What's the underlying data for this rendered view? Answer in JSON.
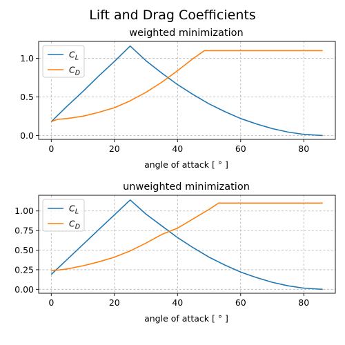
{
  "figure": {
    "suptitle": "Lift and Drag Coefficients"
  },
  "colors": {
    "cl": "#1f77b4",
    "cd": "#ff7f0e"
  },
  "chart_data": [
    {
      "type": "line",
      "title": "weighted minimization",
      "xlabel": "angle of attack [$^\\circ$]",
      "xlabel_display": "angle of attack [ ° ]",
      "ylabel": "",
      "xlim": [
        -4,
        90
      ],
      "ylim": [
        -0.05,
        1.22
      ],
      "xticks": [
        0,
        20,
        40,
        60,
        80
      ],
      "xtick_labels": [
        "0",
        "20",
        "40",
        "60",
        "80"
      ],
      "yticks": [
        0.0,
        0.5,
        1.0
      ],
      "ytick_labels": [
        "0.0",
        "0.5",
        "1.0"
      ],
      "grid": true,
      "legend": "upper left",
      "series": [
        {
          "name": "C_L",
          "x": [
            0,
            5,
            10,
            15,
            20,
            25,
            30,
            35,
            40,
            45,
            50,
            55,
            60,
            65,
            70,
            75,
            80,
            86
          ],
          "y": [
            0.18,
            0.38,
            0.57,
            0.77,
            0.96,
            1.16,
            0.97,
            0.81,
            0.66,
            0.53,
            0.41,
            0.31,
            0.22,
            0.15,
            0.09,
            0.045,
            0.015,
            0.0
          ]
        },
        {
          "name": "C_D",
          "x": [
            0,
            2,
            5,
            10,
            15,
            20,
            25,
            30,
            35,
            40,
            45,
            48.5,
            50,
            55,
            60,
            65,
            70,
            75,
            80,
            86
          ],
          "y": [
            0.18,
            0.21,
            0.22,
            0.25,
            0.3,
            0.36,
            0.45,
            0.56,
            0.69,
            0.84,
            1.0,
            1.1,
            1.1,
            1.1,
            1.1,
            1.1,
            1.1,
            1.1,
            1.1,
            1.1
          ]
        }
      ]
    },
    {
      "type": "line",
      "title": "unweighted minimization",
      "xlabel": "angle of attack [$^\\circ$]",
      "xlabel_display": "angle of attack [ ° ]",
      "ylabel": "",
      "xlim": [
        -4,
        90
      ],
      "ylim": [
        -0.05,
        1.2
      ],
      "xticks": [
        0,
        20,
        40,
        60,
        80
      ],
      "xtick_labels": [
        "0",
        "20",
        "40",
        "60",
        "80"
      ],
      "yticks": [
        0.0,
        0.25,
        0.5,
        0.75,
        1.0
      ],
      "ytick_labels": [
        "0.00",
        "0.25",
        "0.50",
        "0.75",
        "1.00"
      ],
      "grid": true,
      "legend": "upper left",
      "series": [
        {
          "name": "C_L",
          "x": [
            0,
            5,
            10,
            15,
            20,
            25,
            30,
            35,
            40,
            45,
            50,
            55,
            60,
            65,
            70,
            75,
            80,
            86
          ],
          "y": [
            0.19,
            0.38,
            0.57,
            0.76,
            0.95,
            1.14,
            0.96,
            0.81,
            0.66,
            0.53,
            0.41,
            0.31,
            0.22,
            0.15,
            0.09,
            0.045,
            0.015,
            0.0
          ]
        },
        {
          "name": "C_D",
          "x": [
            0,
            2,
            5,
            10,
            15,
            20,
            25,
            30,
            35,
            40,
            45,
            50,
            53,
            55,
            60,
            65,
            70,
            75,
            80,
            86
          ],
          "y": [
            0.24,
            0.245,
            0.26,
            0.3,
            0.35,
            0.41,
            0.49,
            0.59,
            0.7,
            0.78,
            0.9,
            1.02,
            1.1,
            1.1,
            1.1,
            1.1,
            1.1,
            1.1,
            1.1,
            1.1
          ]
        }
      ]
    }
  ]
}
